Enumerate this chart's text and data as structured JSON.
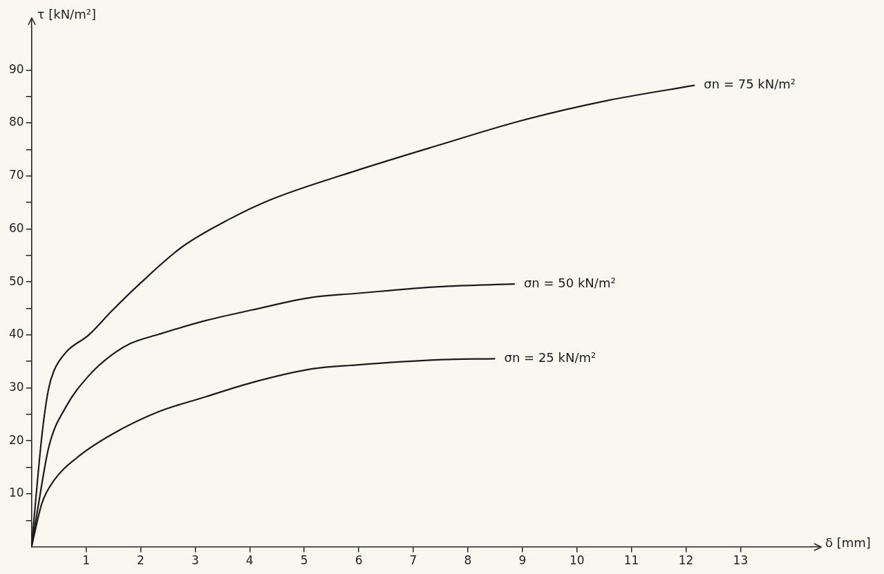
{
  "chart_data": {
    "type": "line",
    "xlabel": "δ [mm]",
    "ylabel": "τ [kN/m²]",
    "xlim": [
      0,
      14.3
    ],
    "xticks": [
      1,
      2,
      3,
      4,
      5,
      6,
      7,
      8,
      9,
      10,
      11,
      12,
      13
    ],
    "ylim": [
      0,
      98
    ],
    "yticks": [
      {
        "value": 5,
        "label": null
      },
      10,
      {
        "value": 15,
        "label": null
      },
      20,
      {
        "value": 25,
        "label": null
      },
      30,
      {
        "value": 35,
        "label": null
      },
      40,
      {
        "value": 45,
        "label": null
      },
      50,
      {
        "value": 55,
        "label": null
      },
      60,
      {
        "value": 65,
        "label": null
      },
      70,
      {
        "value": 75,
        "label": null
      },
      80,
      {
        "value": 85,
        "label": null
      },
      90
    ],
    "grid": false,
    "legend": false,
    "marker": "none",
    "line_style": "solid",
    "series": [
      {
        "name": "σn = 75 kN/m²",
        "color": "#1a1a1a",
        "x": [
          0,
          0.19,
          0.31,
          0.41,
          0.63,
          1.05,
          1.47,
          1.99,
          2.76,
          3.62,
          4.38,
          5.92,
          7.46,
          9.0,
          10.54,
          12.15
        ],
        "values": [
          0,
          21,
          29.7,
          33.2,
          36.7,
          40,
          44.5,
          49.7,
          56.6,
          61.8,
          65.5,
          70.9,
          75.8,
          80.5,
          84.2,
          87.1
        ]
      },
      {
        "name": "σn = 50 kN/m²",
        "color": "#1a1a1a",
        "x": [
          0,
          0.13,
          0.32,
          0.63,
          1.05,
          1.47,
          1.82,
          2.33,
          3.19,
          4.04,
          5.15,
          5.92,
          7.46,
          8.85
        ],
        "values": [
          0,
          8.2,
          19,
          26.4,
          32.3,
          36.2,
          38.4,
          40.1,
          42.7,
          44.7,
          47.1,
          47.8,
          49.1,
          49.6
        ]
      },
      {
        "name": "σn = 25 kN/m²",
        "color": "#1a1a1a",
        "x": [
          0,
          0.19,
          0.41,
          0.83,
          1.47,
          2.33,
          3.19,
          4.04,
          5.15,
          5.92,
          7.46,
          8.49
        ],
        "values": [
          0,
          8.2,
          12.5,
          16.8,
          21.2,
          25.5,
          28.3,
          31,
          33.6,
          34.3,
          35.3,
          35.5
        ]
      }
    ]
  }
}
